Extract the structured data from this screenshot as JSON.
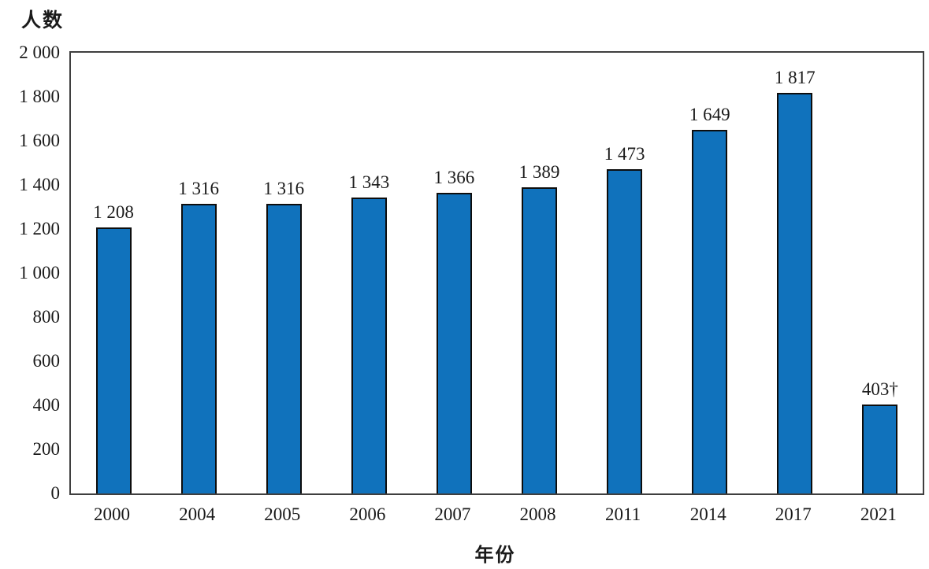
{
  "chart_data": {
    "type": "bar",
    "title": "",
    "ylabel": "人数",
    "xlabel": "年份",
    "categories": [
      "2000",
      "2004",
      "2005",
      "2006",
      "2007",
      "2008",
      "2011",
      "2014",
      "2017",
      "2021"
    ],
    "values": [
      1208,
      1316,
      1316,
      1343,
      1366,
      1389,
      1473,
      1649,
      1817,
      403
    ],
    "bar_labels": [
      "1 208",
      "1 316",
      "1 316",
      "1 343",
      "1 366",
      "1 389",
      "1 473",
      "1 649",
      "1 817",
      "403†"
    ],
    "ylim": [
      0,
      2000
    ],
    "y_tick_values": [
      0,
      200,
      400,
      600,
      800,
      1000,
      1200,
      1400,
      1600,
      1800,
      2000
    ],
    "y_tick_labels": [
      "0",
      "200",
      "400",
      "600",
      "800",
      "1 000",
      "1 200",
      "1 400",
      "1 600",
      "1 800",
      "2 000"
    ],
    "grid": false,
    "legend_position": "none",
    "bar_color": "#1072bc",
    "bar_border_color": "#0d0d0d",
    "plot_border_color": "#3f3f3f",
    "footnote_marker": "†"
  }
}
